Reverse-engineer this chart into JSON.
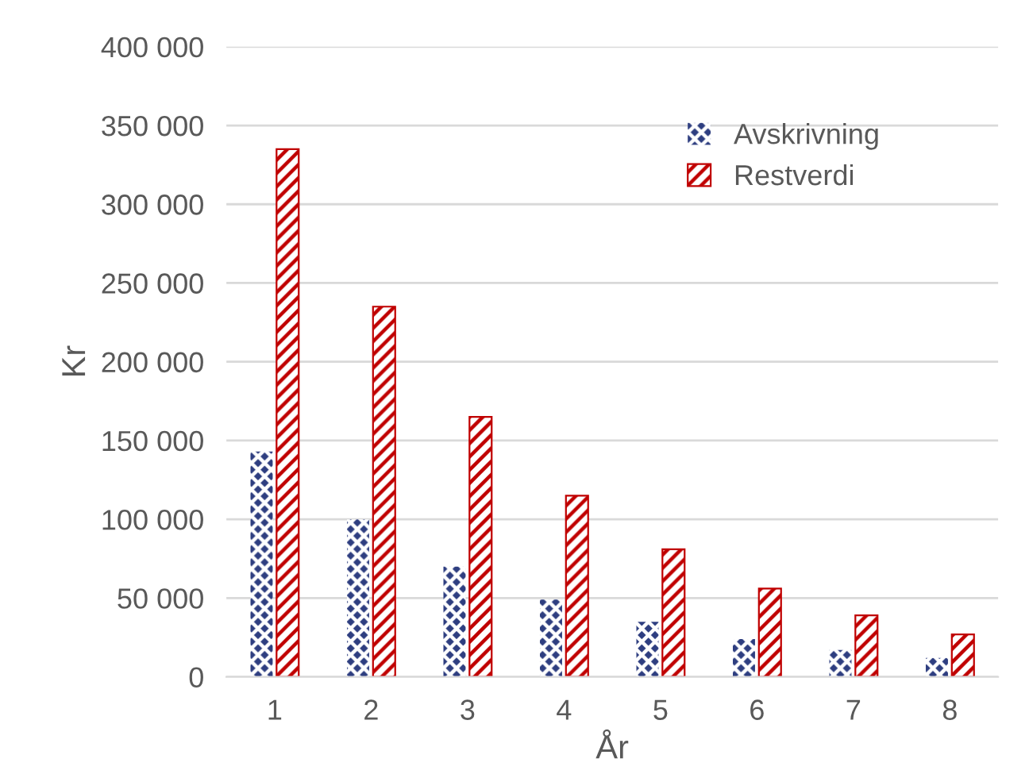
{
  "chart_data": {
    "type": "bar",
    "xlabel": "År",
    "ylabel": "Kr",
    "categories": [
      "1",
      "2",
      "3",
      "4",
      "5",
      "6",
      "7",
      "8"
    ],
    "series": [
      {
        "name": "Avskrivning",
        "color": "#2e3e80",
        "values": [
          143000,
          100000,
          70000,
          49000,
          35000,
          24000,
          17000,
          12000
        ]
      },
      {
        "name": "Restverdi",
        "color": "#c00000",
        "values": [
          335000,
          235000,
          165000,
          115000,
          81000,
          56000,
          39000,
          27000
        ]
      }
    ],
    "ylim": [
      0,
      400000
    ],
    "yticks": [
      {
        "value": 0,
        "label": "0"
      },
      {
        "value": 50000,
        "label": "50 000"
      },
      {
        "value": 100000,
        "label": "100 000"
      },
      {
        "value": 150000,
        "label": "150 000"
      },
      {
        "value": 200000,
        "label": "200 000"
      },
      {
        "value": 250000,
        "label": "250 000"
      },
      {
        "value": 300000,
        "label": "300 000"
      },
      {
        "value": 350000,
        "label": "350 000"
      },
      {
        "value": 400000,
        "label": "400 000"
      }
    ],
    "grid": "y",
    "legend": "top right"
  }
}
